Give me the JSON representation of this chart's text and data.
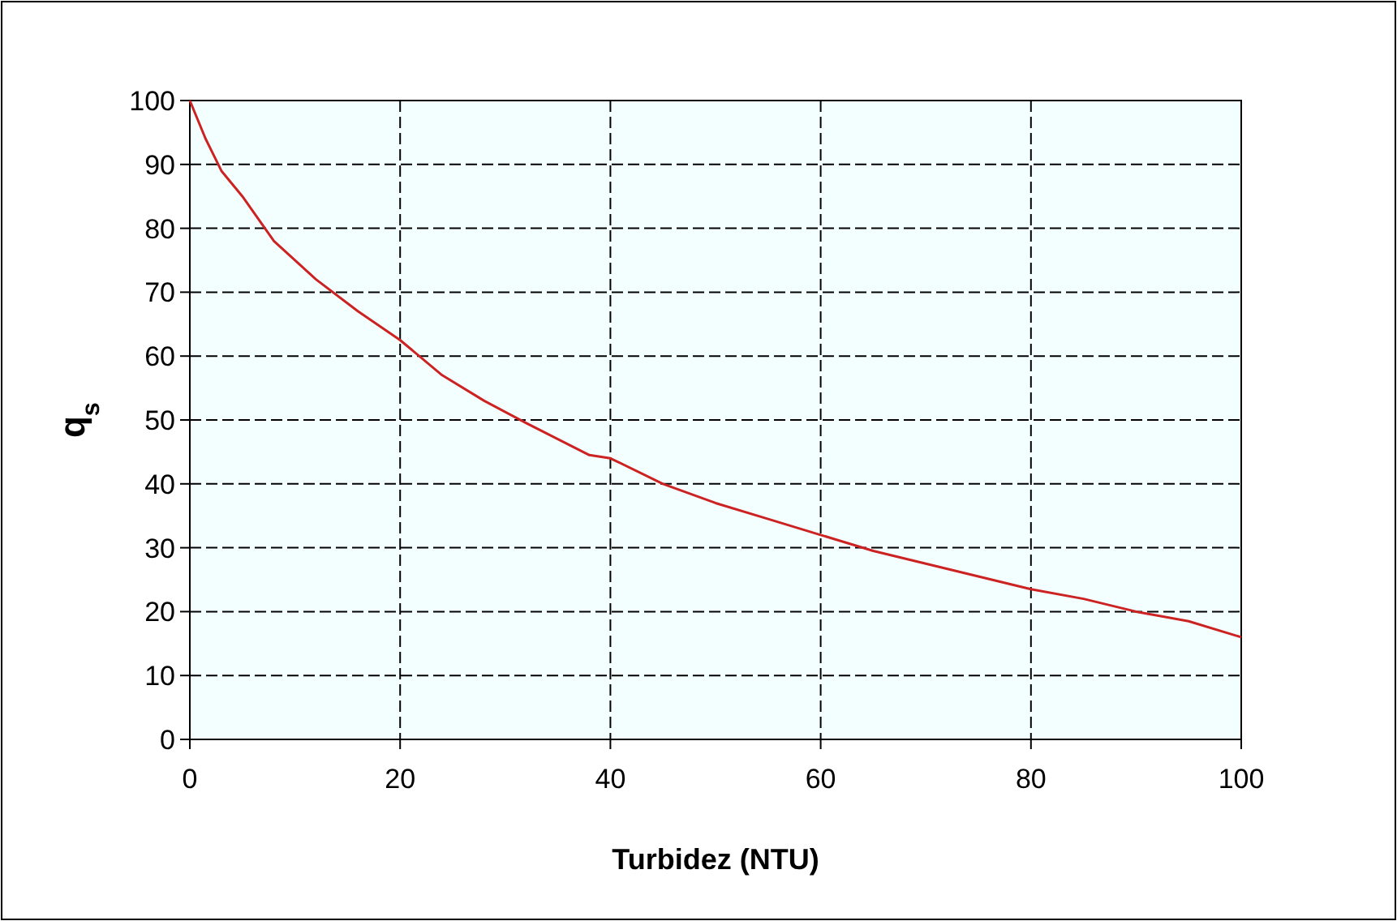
{
  "chart_data": {
    "type": "line",
    "xlabel": "Turbidez (NTU)",
    "ylabel": "q$_{s}$",
    "x": [
      0,
      1.5,
      3,
      5,
      8,
      12,
      16,
      20,
      24,
      28,
      32,
      35,
      38,
      40,
      45,
      50,
      55,
      60,
      65,
      70,
      75,
      80,
      85,
      90,
      95,
      100
    ],
    "series": [
      {
        "color": "#cc2222",
        "values": [
          100,
          94,
          89,
          85,
          78,
          72,
          67,
          62.5,
          57,
          53,
          49.5,
          47,
          44.5,
          44,
          40,
          37,
          34.5,
          32,
          29.5,
          27.5,
          25.5,
          23.5,
          22,
          20,
          18.5,
          16
        ]
      }
    ],
    "xlim": [
      0,
      100
    ],
    "xticks": [
      0,
      20,
      40,
      60,
      80,
      100
    ],
    "ylim": [
      0,
      100
    ],
    "yticks": [
      0,
      10,
      20,
      30,
      40,
      50,
      60,
      70,
      80,
      90,
      100
    ],
    "grid": true,
    "line_style": "solid",
    "marker": "none"
  }
}
